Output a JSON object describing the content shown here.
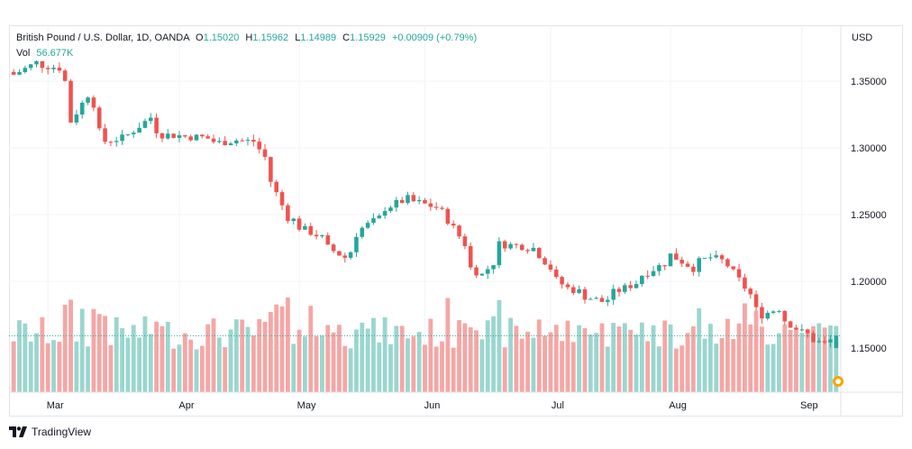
{
  "legend": {
    "symbol": "British Pound / U.S. Dollar, 1D, OANDA",
    "o_label": "O",
    "o_value": "1.15020",
    "h_label": "H",
    "h_value": "1.15962",
    "l_label": "L",
    "l_value": "1.14989",
    "c_label": "C",
    "c_value": "1.15929",
    "change": "+0.00909 (+0.79%)",
    "vol_label": "Vol",
    "vol_value": "56.677K"
  },
  "currency": "USD",
  "branding": {
    "name": "TradingView"
  },
  "colors": {
    "up": "#26a69a",
    "down": "#ef5350",
    "up_vol": "#9ad6cf",
    "down_vol": "#f4a7a5",
    "grid": "#f0f3fa",
    "text": "#131722"
  },
  "chart_data": {
    "type": "candlestick",
    "y_ticks": [
      "1.35000",
      "1.30000",
      "1.25000",
      "1.20000",
      "1.15000"
    ],
    "x_ticks": [
      "Mar",
      "Apr",
      "May",
      "Jun",
      "Jul",
      "Aug",
      "Sep"
    ],
    "ylim": [
      1.117,
      1.392
    ],
    "last_price": 1.15929,
    "grid": true,
    "anchors": [
      [
        "2022-02-21",
        1.355
      ],
      [
        "2022-02-25",
        1.364
      ],
      [
        "2022-03-03",
        1.36
      ],
      [
        "2022-03-07",
        1.32
      ],
      [
        "2022-03-10",
        1.34
      ],
      [
        "2022-03-15",
        1.305
      ],
      [
        "2022-03-21",
        1.31
      ],
      [
        "2022-03-25",
        1.323
      ],
      [
        "2022-03-29",
        1.31
      ],
      [
        "2022-04-07",
        1.308
      ],
      [
        "2022-04-12",
        1.304
      ],
      [
        "2022-04-15",
        1.306
      ],
      [
        "2022-04-20",
        1.305
      ],
      [
        "2022-04-25",
        1.275
      ],
      [
        "2022-04-28",
        1.248
      ],
      [
        "2022-05-05",
        1.235
      ],
      [
        "2022-05-12",
        1.218
      ],
      [
        "2022-05-17",
        1.24
      ],
      [
        "2022-05-23",
        1.255
      ],
      [
        "2022-05-27",
        1.262
      ],
      [
        "2022-05-31",
        1.259
      ],
      [
        "2022-06-06",
        1.252
      ],
      [
        "2022-06-13",
        1.21
      ],
      [
        "2022-06-15",
        1.205
      ],
      [
        "2022-06-20",
        1.228
      ],
      [
        "2022-06-28",
        1.225
      ],
      [
        "2022-07-01",
        1.21
      ],
      [
        "2022-07-06",
        1.195
      ],
      [
        "2022-07-14",
        1.185
      ],
      [
        "2022-07-20",
        1.195
      ],
      [
        "2022-07-25",
        1.205
      ],
      [
        "2022-08-01",
        1.22
      ],
      [
        "2022-08-05",
        1.21
      ],
      [
        "2022-08-10",
        1.218
      ],
      [
        "2022-08-15",
        1.212
      ],
      [
        "2022-08-19",
        1.19
      ],
      [
        "2022-08-23",
        1.175
      ],
      [
        "2022-08-26",
        1.18
      ],
      [
        "2022-09-01",
        1.162
      ],
      [
        "2022-09-07",
        1.153
      ],
      [
        "2022-09-09",
        1.1593
      ]
    ]
  }
}
